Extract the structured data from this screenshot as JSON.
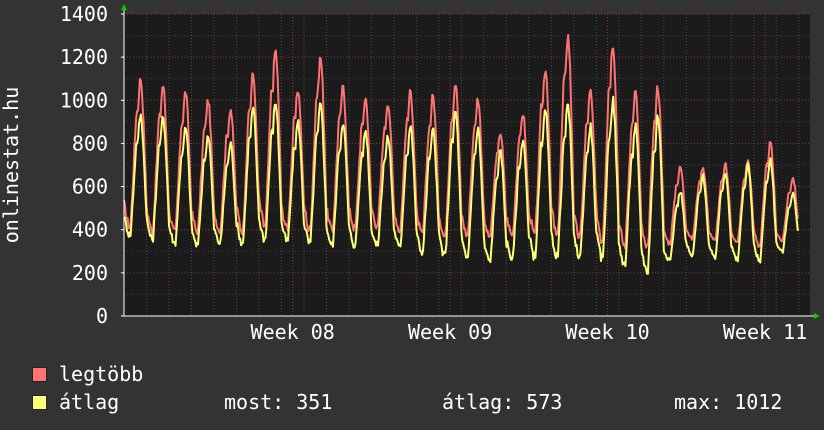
{
  "chart_data": {
    "type": "line",
    "ylabel": "onlinestat.hu",
    "ylim": [
      0,
      1400
    ],
    "yticks": [
      0,
      200,
      400,
      600,
      800,
      1000,
      1200,
      1400
    ],
    "x_tick_labels": [
      "Week 08",
      "Week 09",
      "Week 10",
      "Week 11"
    ],
    "x_tick_positions_days": [
      7.5,
      14.5,
      21.5,
      28.5
    ],
    "x_range_days": [
      0,
      30.5
    ],
    "grid": true,
    "series": [
      {
        "name": "legtöbb",
        "color": "#ff7373",
        "daily_min": [
          420,
          400,
          390,
          395,
          400,
          400,
          420,
          410,
          400,
          400,
          410,
          420,
          400,
          380,
          370,
          380,
          370,
          380,
          380,
          370,
          370,
          360,
          330,
          310,
          340,
          360,
          350,
          340,
          330,
          350
        ],
        "daily_max": [
          1100,
          1070,
          1040,
          1000,
          960,
          1120,
          1230,
          1050,
          1200,
          1060,
          1010,
          990,
          1040,
          1020,
          1080,
          1010,
          850,
          940,
          1150,
          1300,
          1040,
          1270,
          1040,
          1060,
          690,
          690,
          700,
          720,
          800,
          640
        ]
      },
      {
        "name": "átlag",
        "color": "#ffff77",
        "daily_min": [
          380,
          360,
          340,
          330,
          340,
          340,
          360,
          350,
          340,
          330,
          330,
          330,
          320,
          300,
          280,
          270,
          260,
          270,
          280,
          280,
          280,
          270,
          240,
          210,
          260,
          280,
          270,
          260,
          260,
          300
        ],
        "daily_max": [
          930,
          920,
          870,
          840,
          800,
          960,
          990,
          900,
          980,
          900,
          860,
          830,
          880,
          860,
          950,
          870,
          760,
          820,
          950,
          980,
          880,
          1000,
          880,
          930,
          580,
          650,
          670,
          700,
          730,
          570
        ]
      }
    ]
  },
  "legend": {
    "max_label": "legtöbb",
    "avg_label": "átlag",
    "now_text": "most: 351",
    "avg_text": "átlag: 573",
    "max_text": "max: 1012"
  }
}
